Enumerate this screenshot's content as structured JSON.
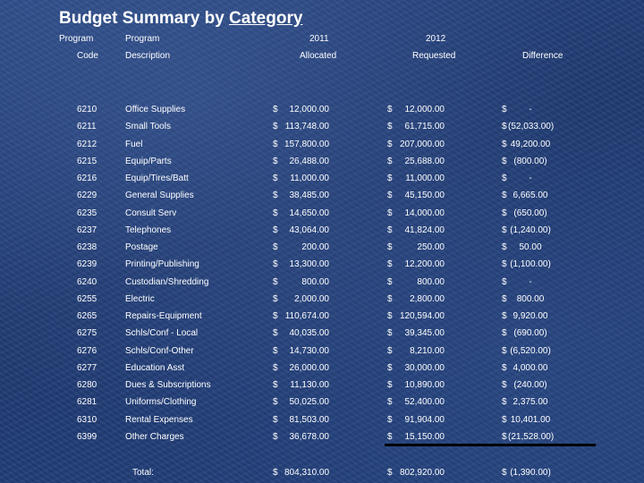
{
  "title_part1": "Budget Summary by",
  "title_part2": "Category",
  "headers": {
    "program1": "Program",
    "code": "Code",
    "program2": "Program",
    "description": "Description",
    "y2011": "2011",
    "allocated": "Allocated",
    "y2012": "2012",
    "requested": "Requested",
    "difference": "Difference"
  },
  "rows": [
    {
      "code": "6210",
      "desc": "Office Supplies",
      "d1": "$",
      "a1": "12,000.00",
      "d2": "$",
      "a2": "12,000.00",
      "d3": "$",
      "diff": "-"
    },
    {
      "code": "6211",
      "desc": "Small Tools",
      "d1": "$",
      "a1": "113,748.00",
      "d2": "$",
      "a2": "61,715.00",
      "d3": "$",
      "diff": "(52,033.00)"
    },
    {
      "code": "6212",
      "desc": "Fuel",
      "d1": "$",
      "a1": "157,800.00",
      "d2": "$",
      "a2": "207,000.00",
      "d3": "$",
      "diff": "49,200.00"
    },
    {
      "code": "6215",
      "desc": "Equip/Parts",
      "d1": "$",
      "a1": "26,488.00",
      "d2": "$",
      "a2": "25,688.00",
      "d3": "$",
      "diff": "(800.00)"
    },
    {
      "code": "6216",
      "desc": "Equip/Tires/Batt",
      "d1": "$",
      "a1": "11,000.00",
      "d2": "$",
      "a2": "11,000.00",
      "d3": "$",
      "diff": "-"
    },
    {
      "code": "6229",
      "desc": "General Supplies",
      "d1": "$",
      "a1": "38,485.00",
      "d2": "$",
      "a2": "45,150.00",
      "d3": "$",
      "diff": "6,665.00"
    },
    {
      "code": "6235",
      "desc": "Consult Serv",
      "d1": "$",
      "a1": "14,650.00",
      "d2": "$",
      "a2": "14,000.00",
      "d3": "$",
      "diff": "(650.00)"
    },
    {
      "code": "6237",
      "desc": "Telephones",
      "d1": "$",
      "a1": "43,064.00",
      "d2": "$",
      "a2": "41,824.00",
      "d3": "$",
      "diff": "(1,240.00)"
    },
    {
      "code": "6238",
      "desc": "Postage",
      "d1": "$",
      "a1": "200.00",
      "d2": "$",
      "a2": "250.00",
      "d3": "$",
      "diff": "50.00"
    },
    {
      "code": "6239",
      "desc": "Printing/Publishing",
      "d1": "$",
      "a1": "13,300.00",
      "d2": "$",
      "a2": "12,200.00",
      "d3": "$",
      "diff": "(1,100.00)"
    },
    {
      "code": "6240",
      "desc": "Custodian/Shredding",
      "d1": "$",
      "a1": "800.00",
      "d2": "$",
      "a2": "800.00",
      "d3": "$",
      "diff": "-"
    },
    {
      "code": "6255",
      "desc": "Electric",
      "d1": "$",
      "a1": "2,000.00",
      "d2": "$",
      "a2": "2,800.00",
      "d3": "$",
      "diff": "800.00"
    },
    {
      "code": "6265",
      "desc": "Repairs-Equipment",
      "d1": "$",
      "a1": "110,674.00",
      "d2": "$",
      "a2": "120,594.00",
      "d3": "$",
      "diff": "9,920.00"
    },
    {
      "code": "6275",
      "desc": "Schls/Conf - Local",
      "d1": "$",
      "a1": "40,035.00",
      "d2": "$",
      "a2": "39,345.00",
      "d3": "$",
      "diff": "(690.00)"
    },
    {
      "code": "6276",
      "desc": "Schls/Conf-Other",
      "d1": "$",
      "a1": "14,730.00",
      "d2": "$",
      "a2": "8,210.00",
      "d3": "$",
      "diff": "(6,520.00)"
    },
    {
      "code": "6277",
      "desc": "Education Asst",
      "d1": "$",
      "a1": "26,000.00",
      "d2": "$",
      "a2": "30,000.00",
      "d3": "$",
      "diff": "4,000.00"
    },
    {
      "code": "6280",
      "desc": "Dues & Subscriptions",
      "d1": "$",
      "a1": "11,130.00",
      "d2": "$",
      "a2": "10,890.00",
      "d3": "$",
      "diff": "(240.00)"
    },
    {
      "code": "6281",
      "desc": "Uniforms/Clothing",
      "d1": "$",
      "a1": "50,025.00",
      "d2": "$",
      "a2": "52,400.00",
      "d3": "$",
      "diff": "2,375.00"
    },
    {
      "code": "6310",
      "desc": "Rental Expenses",
      "d1": "$",
      "a1": "81,503.00",
      "d2": "$",
      "a2": "91,904.00",
      "d3": "$",
      "diff": "10,401.00"
    },
    {
      "code": "6399",
      "desc": "Other Charges",
      "d1": "$",
      "a1": "36,678.00",
      "d2": "$",
      "a2": "15,150.00",
      "d3": "$",
      "diff": "(21,528.00)"
    }
  ],
  "total": {
    "label": "Total:",
    "d1": "$",
    "a1": "804,310.00",
    "d2": "$",
    "a2": "802,920.00",
    "d3": "$",
    "diff": "(1,390.00)"
  }
}
